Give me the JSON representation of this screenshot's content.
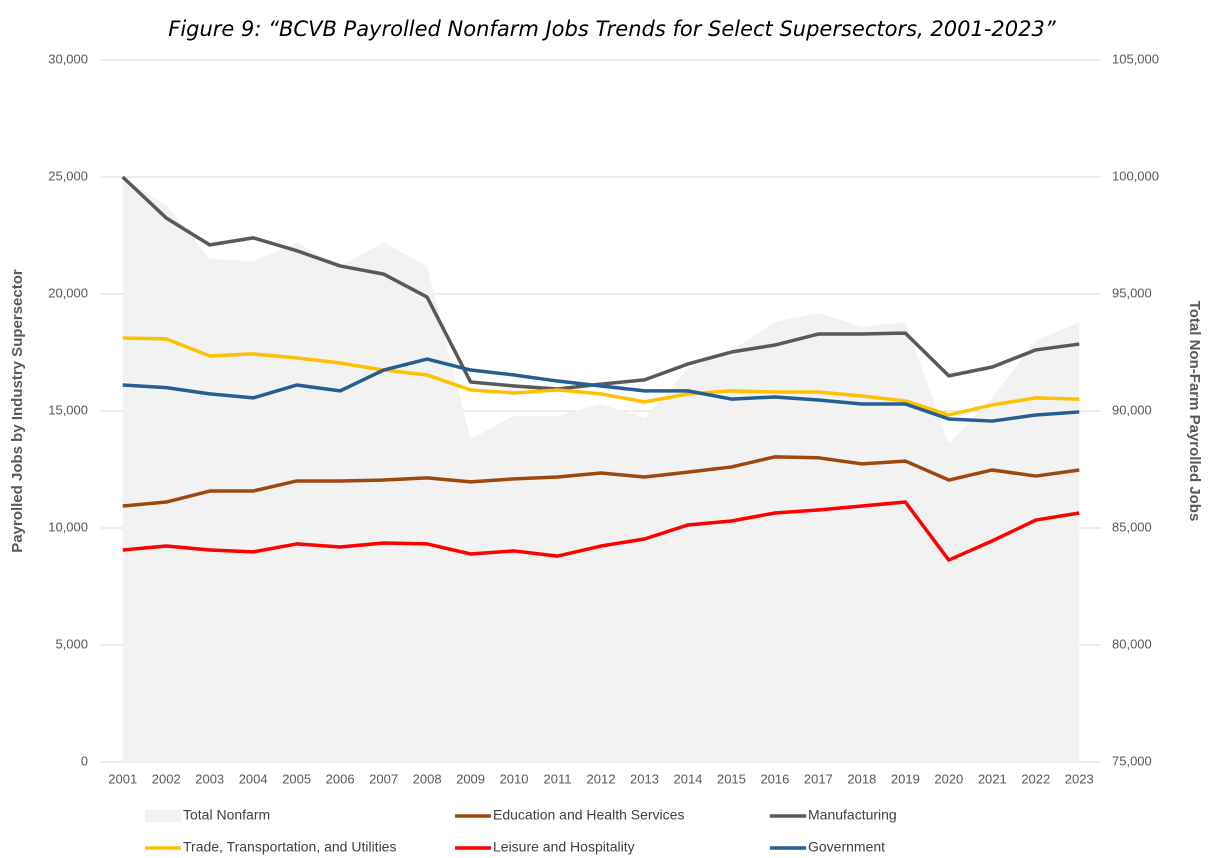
{
  "chart_data": {
    "type": "line",
    "title": "Figure 9: “BCVB Payrolled Nonfarm Jobs Trends for Select Supersectors, 2001-2023”",
    "y_label": "Payrolled Jobs by Industry Supersector",
    "y2_label": "Total Non-Farm Payrolled Jobs",
    "categories": [
      "2001",
      "2002",
      "2003",
      "2004",
      "2005",
      "2006",
      "2007",
      "2008",
      "2009",
      "2010",
      "2011",
      "2012",
      "2013",
      "2014",
      "2015",
      "2016",
      "2017",
      "2018",
      "2019",
      "2020",
      "2021",
      "2022",
      "2023"
    ],
    "ylim": [
      0,
      30000
    ],
    "yticks": [
      0,
      {
        "value": 5000,
        "label": "5,000"
      },
      {
        "value": 10000,
        "label": "10,000"
      },
      {
        "value": 15000,
        "label": "15,000"
      },
      {
        "value": 20000,
        "label": "20,000"
      },
      {
        "value": 25000,
        "label": "25,000"
      },
      {
        "value": 30000,
        "label": "30,000"
      }
    ],
    "y2lim": [
      75000,
      105000
    ],
    "y2ticks": [
      {
        "value": 75000,
        "label": "75,000"
      },
      {
        "value": 80000,
        "label": "80,000"
      },
      {
        "value": 85000,
        "label": "85,000"
      },
      {
        "value": 90000,
        "label": "90,000"
      },
      {
        "value": 95000,
        "label": "95,000"
      },
      {
        "value": 100000,
        "label": "100,000"
      },
      {
        "value": 105000,
        "label": "105,000"
      }
    ],
    "grid": true,
    "legend": "bottom",
    "series": [
      {
        "name": "Total Nonfarm",
        "type": "area",
        "axis": "y2",
        "color": "#f2f2f2",
        "values": [
          99960,
          98800,
          96500,
          96400,
          97200,
          96200,
          97200,
          96200,
          88800,
          89800,
          89800,
          90300,
          89700,
          91800,
          92600,
          93800,
          94200,
          93600,
          93800,
          88600,
          90600,
          93000,
          93800
        ]
      },
      {
        "name": "Education and Health Services",
        "type": "line",
        "color": "#9e480e",
        "values": [
          10940,
          11110,
          11580,
          11580,
          12010,
          12010,
          12050,
          12140,
          11970,
          12100,
          12180,
          12350,
          12180,
          12390,
          12610,
          13040,
          13000,
          12740,
          12860,
          12050,
          12480,
          12220,
          12480
        ]
      },
      {
        "name": "Manufacturing",
        "type": "line",
        "color": "#595959",
        "values": [
          25000,
          23250,
          22100,
          22400,
          21850,
          21200,
          20850,
          19870,
          16240,
          16070,
          15940,
          16150,
          16330,
          17010,
          17520,
          17820,
          18290,
          18290,
          18330,
          16500,
          16880,
          17610,
          17860
        ]
      },
      {
        "name": "Trade, Transportation, and Utilities",
        "type": "line",
        "color": "#ffc000",
        "values": [
          18120,
          18080,
          17350,
          17440,
          17270,
          17050,
          16750,
          16540,
          15900,
          15770,
          15900,
          15730,
          15390,
          15730,
          15860,
          15810,
          15810,
          15640,
          15430,
          14830,
          15260,
          15560,
          15510
        ]
      },
      {
        "name": "Leisure and Hospitality",
        "type": "line",
        "color": "#ff0000",
        "values": [
          9060,
          9230,
          9060,
          8980,
          9320,
          9190,
          9360,
          9320,
          8890,
          9020,
          8800,
          9230,
          9530,
          10130,
          10300,
          10640,
          10770,
          10940,
          11110,
          8630,
          9450,
          10340,
          10640
        ]
      },
      {
        "name": "Government",
        "type": "line",
        "color": "#255e91",
        "values": [
          16110,
          16000,
          15730,
          15560,
          16110,
          15860,
          16750,
          17220,
          16750,
          16540,
          16280,
          16070,
          15860,
          15860,
          15510,
          15600,
          15470,
          15300,
          15300,
          14660,
          14570,
          14830,
          14960
        ]
      }
    ]
  }
}
